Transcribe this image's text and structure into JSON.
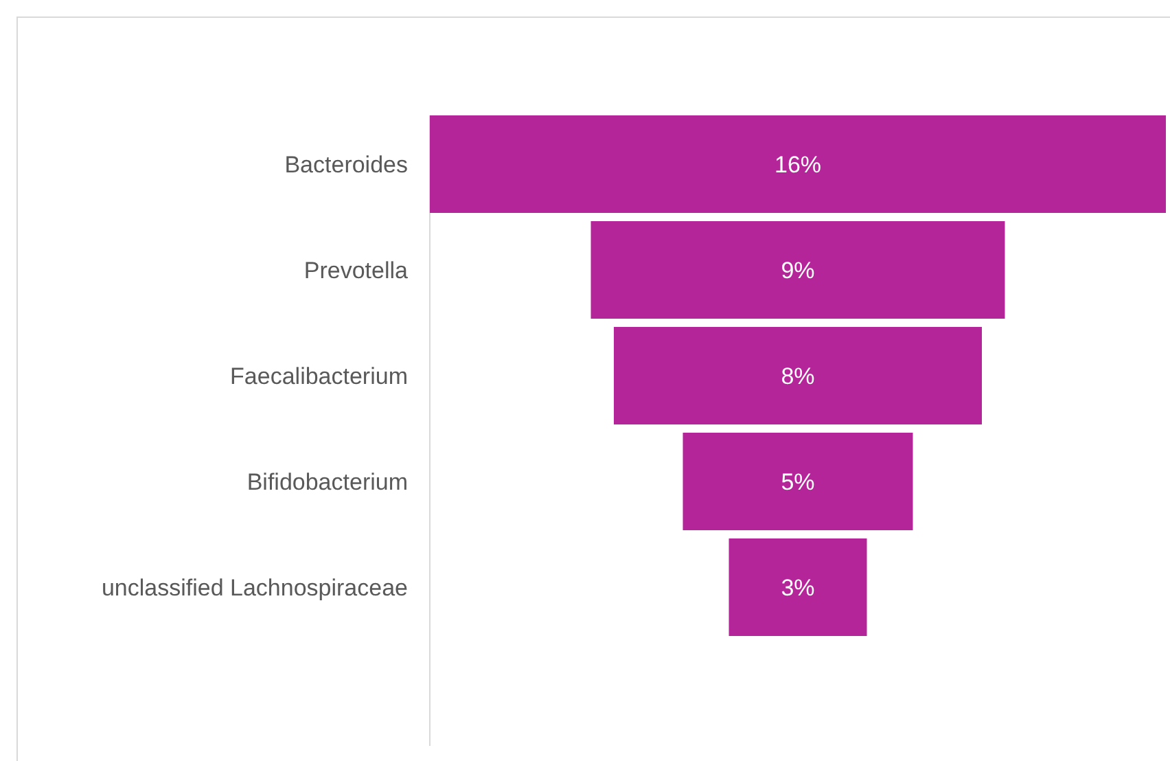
{
  "chart_data": {
    "type": "other",
    "categories": [
      "Bacteroides",
      "Prevotella",
      "Faecalibacterium",
      "Bifidobacterium",
      "unclassified Lachnospiraceae"
    ],
    "values": [
      16,
      9,
      8,
      5,
      3
    ],
    "value_labels": [
      "16%",
      "9%",
      "8%",
      "5%",
      "3%"
    ],
    "color": "#b5259a"
  }
}
